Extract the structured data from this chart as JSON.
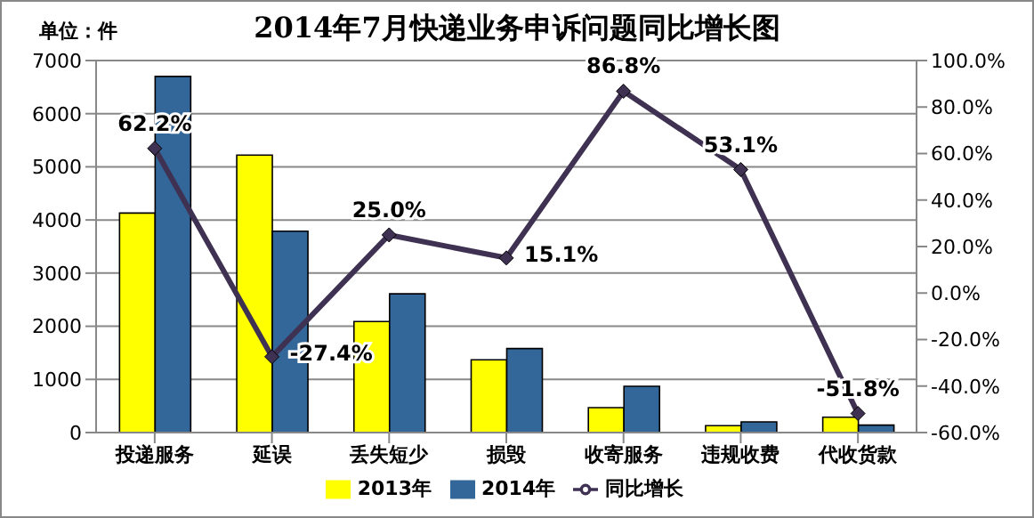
{
  "chart_data": {
    "type": "bar",
    "title": "2014年7月快递业务申诉问题同比增长图",
    "annotations": [
      "单位：件"
    ],
    "categories": [
      "投递服务",
      "延误",
      "丢失短少",
      "损毁",
      "收寄服务",
      "违规收费",
      "代收货款"
    ],
    "series": [
      {
        "name": "2013年",
        "color": "#ffff00",
        "values": [
          4130,
          5220,
          2090,
          1370,
          470,
          130,
          290
        ]
      },
      {
        "name": "2014年",
        "color": "#336699",
        "values": [
          6700,
          3790,
          2610,
          1580,
          870,
          200,
          140
        ]
      },
      {
        "name": "同比增长",
        "type": "line",
        "axis": "y2",
        "color": "#3f3151",
        "marker": "diamond",
        "values": [
          62.2,
          -27.4,
          25.0,
          15.1,
          86.8,
          53.1,
          -51.8
        ],
        "value_labels": [
          "62.2%",
          "-27.4%",
          "25.0%",
          "15.1%",
          "86.8%",
          "53.1%",
          "-51.8%"
        ]
      }
    ],
    "ylim": [
      0,
      7000
    ],
    "yticks": [
      0,
      1000,
      2000,
      3000,
      4000,
      5000,
      6000,
      7000
    ],
    "y2lim": [
      -60,
      100
    ],
    "y2ticks": [
      {
        "value": -60,
        "label": "-60.0%"
      },
      {
        "value": -40,
        "label": "-40.0%"
      },
      {
        "value": -20,
        "label": "-20.0%"
      },
      {
        "value": 0,
        "label": "0.0%"
      },
      {
        "value": 20,
        "label": "20.0%"
      },
      {
        "value": 40,
        "label": "40.0%"
      },
      {
        "value": 60,
        "label": "60.0%"
      },
      {
        "value": 80,
        "label": "80.0%"
      },
      {
        "value": 100,
        "label": "100.0%"
      }
    ],
    "grid": "y",
    "legend": "bottom"
  }
}
